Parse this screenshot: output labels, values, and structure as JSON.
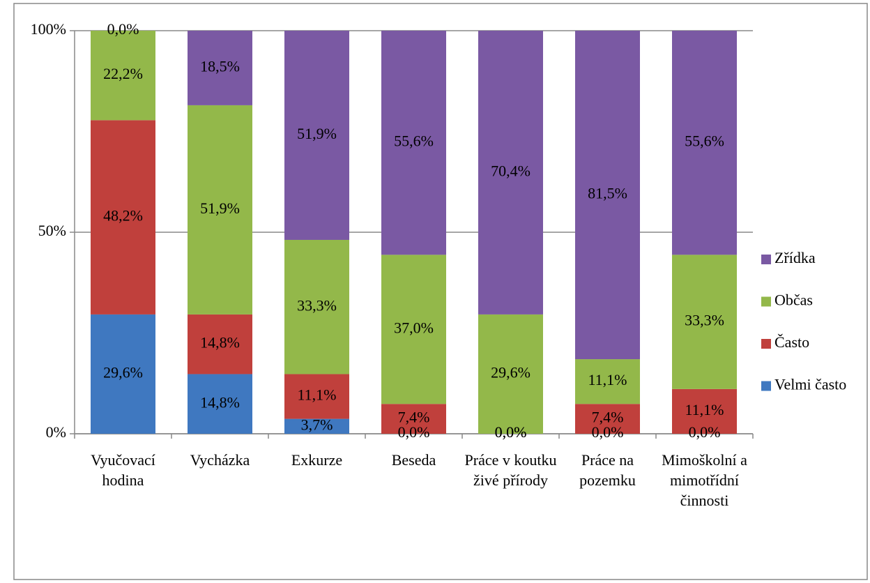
{
  "chart_data": {
    "type": "stacked_bar",
    "categories": [
      "Vyučovací hodina",
      "Vycházka",
      "Exkurze",
      "Beseda",
      "Práce v koutku živé přírody",
      "Práce na pozemku",
      "Mimoškolní a mimotřídní činnosti"
    ],
    "series": [
      {
        "name": "Velmi často",
        "color": "#3f78c0",
        "values": [
          29.6,
          14.8,
          3.7,
          0.0,
          0.0,
          0.0,
          0.0
        ],
        "value_labels": [
          "29,6%",
          "14,8%",
          "3,7%",
          "0,0%",
          "0,0%",
          "0,0%",
          "0,0%"
        ]
      },
      {
        "name": "Často",
        "color": "#c0403c",
        "values": [
          48.2,
          14.8,
          11.1,
          7.4,
          0.0,
          7.4,
          11.1
        ],
        "value_labels": [
          "48,2%",
          "14,8%",
          "11,1%",
          "7,4%",
          "0,0%",
          "7,4%",
          "11,1%"
        ]
      },
      {
        "name": "Občas",
        "color": "#93b84a",
        "values": [
          22.2,
          51.9,
          33.3,
          37.0,
          29.6,
          11.1,
          33.3
        ],
        "value_labels": [
          "22,2%",
          "51,9%",
          "33,3%",
          "37,0%",
          "29,6%",
          "11,1%",
          "33,3%"
        ]
      },
      {
        "name": "Zřídka",
        "color": "#7a59a3",
        "values": [
          0.0,
          18.5,
          51.9,
          55.6,
          70.4,
          81.5,
          55.6
        ],
        "value_labels": [
          "0,0%",
          "18,5%",
          "51,9%",
          "55,6%",
          "70,4%",
          "81,5%",
          "55,6%"
        ]
      }
    ],
    "ylim": [
      0,
      100
    ],
    "yticks": [
      {
        "value": 0,
        "label": "0%"
      },
      {
        "value": 50,
        "label": "50%"
      },
      {
        "value": 100,
        "label": "100%"
      }
    ],
    "grid": true,
    "legend": "right"
  }
}
